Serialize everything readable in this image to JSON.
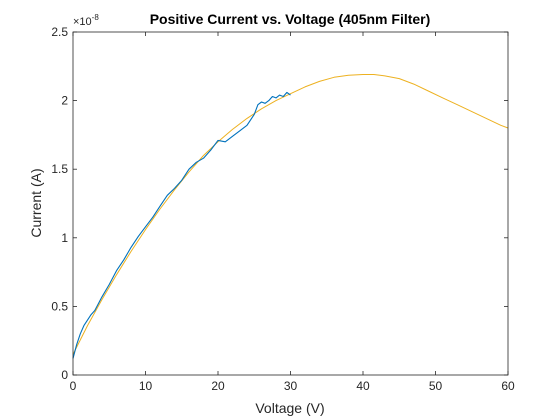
{
  "chart_data": {
    "type": "line",
    "title": "Positive Current vs. Voltage (405nm Filter)",
    "xlabel": "Voltage (V)",
    "ylabel": "Current (A)",
    "xlim": [
      0,
      60
    ],
    "ylim": [
      0,
      2.5
    ],
    "y_exponent_label": "×10",
    "y_exponent_power": "-8",
    "x_ticks": [
      0,
      10,
      20,
      30,
      40,
      50,
      60
    ],
    "x_tick_labels": [
      "0",
      "10",
      "20",
      "30",
      "40",
      "50",
      "60"
    ],
    "y_ticks": [
      0,
      0.5,
      1,
      1.5,
      2,
      2.5
    ],
    "y_tick_labels": [
      "0",
      "0.5",
      "1",
      "1.5",
      "2",
      "2.5"
    ],
    "grid": false,
    "series": [
      {
        "color": "#0072BD",
        "style": "measured",
        "x": [
          0,
          0.5,
          1,
          1.5,
          2,
          2.5,
          3,
          4,
          5,
          6,
          7,
          8,
          9,
          10,
          11,
          12,
          13,
          14,
          15,
          16,
          17,
          18,
          19,
          20,
          21,
          22,
          23,
          24,
          25,
          25.5,
          26,
          26.5,
          27,
          27.5,
          28,
          28.5,
          29,
          29.5,
          30
        ],
        "y": [
          0.12,
          0.22,
          0.3,
          0.36,
          0.4,
          0.44,
          0.47,
          0.57,
          0.66,
          0.76,
          0.84,
          0.93,
          1.01,
          1.08,
          1.15,
          1.23,
          1.31,
          1.36,
          1.42,
          1.5,
          1.55,
          1.58,
          1.64,
          1.71,
          1.7,
          1.74,
          1.78,
          1.82,
          1.9,
          1.97,
          1.99,
          1.98,
          2.0,
          2.03,
          2.02,
          2.04,
          2.03,
          2.06,
          2.04
        ]
      },
      {
        "color": "#EDB120",
        "style": "fit",
        "x": [
          0,
          2,
          4,
          6,
          8,
          10,
          12,
          14,
          16,
          18,
          20,
          22,
          24,
          26,
          28,
          30,
          32,
          34,
          36,
          38,
          40,
          41.5,
          43,
          45,
          47,
          49,
          51,
          53,
          55,
          57,
          59,
          60
        ],
        "y": [
          0.15,
          0.36,
          0.55,
          0.73,
          0.9,
          1.06,
          1.21,
          1.35,
          1.48,
          1.6,
          1.7,
          1.79,
          1.87,
          1.94,
          2.0,
          2.05,
          2.1,
          2.14,
          2.17,
          2.185,
          2.19,
          2.19,
          2.18,
          2.16,
          2.12,
          2.07,
          2.02,
          1.97,
          1.92,
          1.87,
          1.82,
          1.8
        ]
      }
    ]
  }
}
